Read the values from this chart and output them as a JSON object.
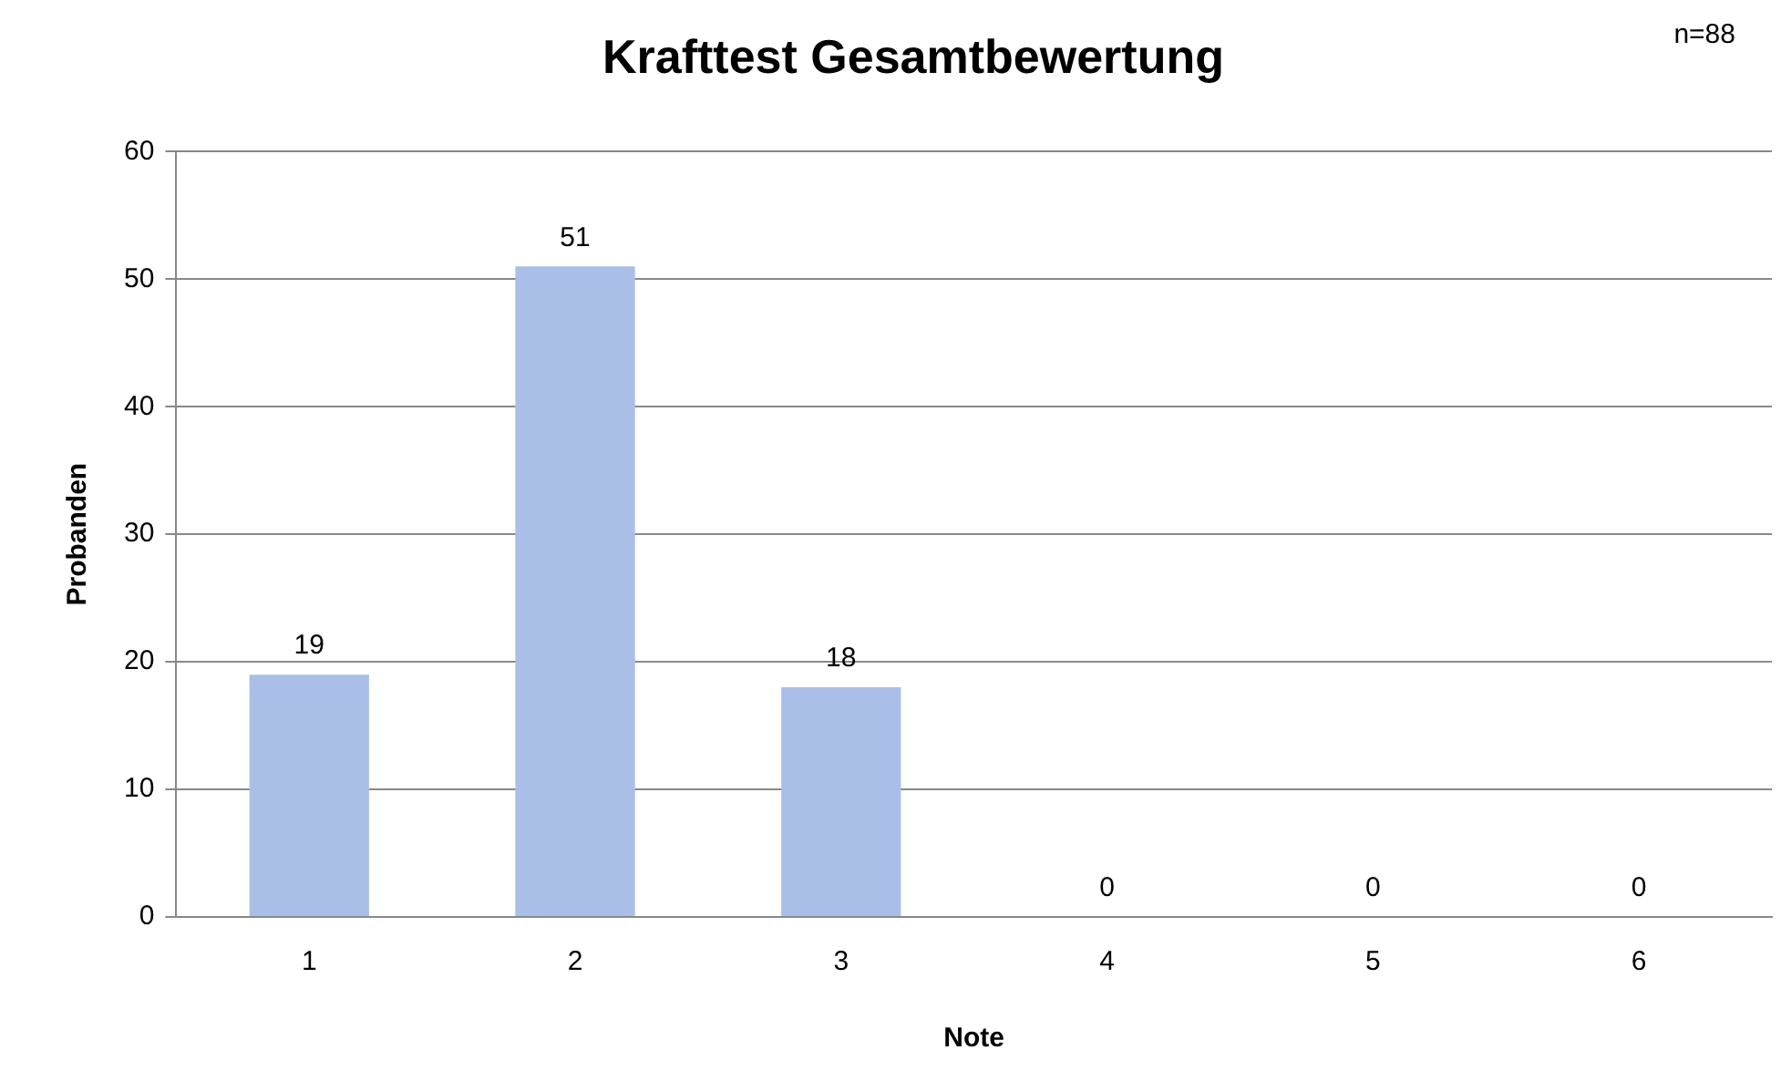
{
  "chart_data": {
    "type": "bar",
    "title": "Krafttest Gesamtbewertung",
    "xlabel": "Note",
    "ylabel": "Probanden",
    "categories": [
      "1",
      "2",
      "3",
      "4",
      "5",
      "6"
    ],
    "values": [
      19,
      51,
      18,
      0,
      0,
      0
    ],
    "color": "#a9bfe8",
    "ylim": [
      0,
      60
    ],
    "yticks": [
      0,
      10,
      20,
      30,
      40,
      50,
      60
    ],
    "grid": "y",
    "data_labels": true,
    "legend": false,
    "annotations": [
      "n=88"
    ]
  }
}
